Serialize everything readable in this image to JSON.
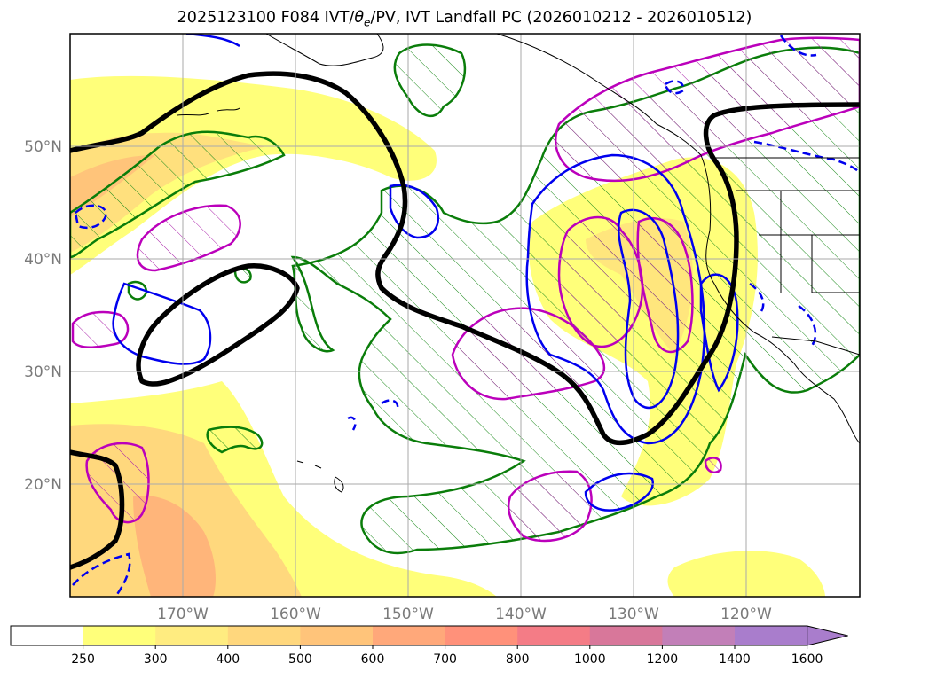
{
  "title": {
    "prefix": "2025123100 F084 IVT/",
    "theta": "θ",
    "theta_sub": "e",
    "suffix": "/PV, IVT Landfall PC (2026010212 - 2026010512)"
  },
  "map": {
    "lat_labels": [
      "50°N",
      "40°N",
      "30°N",
      "20°N"
    ],
    "lon_labels": [
      "170°W",
      "160°W",
      "150°W",
      "140°W",
      "130°W",
      "120°W"
    ],
    "lat_range": [
      10,
      60
    ],
    "lon_range": [
      -180,
      -112
    ],
    "layers": {
      "ivt_fill": "IVT shaded (kg m-1 s-1)",
      "black_contour": "PV / jet contour",
      "green_hatched": "IVT landfall PC region",
      "magenta_hatched": "theta-e anomaly region",
      "blue_solid": "positive contour",
      "blue_dashed": "negative contour"
    },
    "colors": {
      "black": "#000000",
      "green": "#0a7d0a",
      "magenta": "#bb00bb",
      "blue": "#0000ee",
      "coast": "#000000"
    }
  },
  "colorbar": {
    "ticks": [
      "250",
      "300",
      "400",
      "500",
      "600",
      "700",
      "800",
      "1000",
      "1200",
      "1400",
      "1600"
    ],
    "colors": [
      "#ffffff",
      "#ffff7a",
      "#ffec80",
      "#ffd77d",
      "#ffc47a",
      "#ffa87a",
      "#ff917a",
      "#f47c86",
      "#d8779a",
      "#c27fb8",
      "#a97dcc"
    ],
    "extend": "max"
  }
}
